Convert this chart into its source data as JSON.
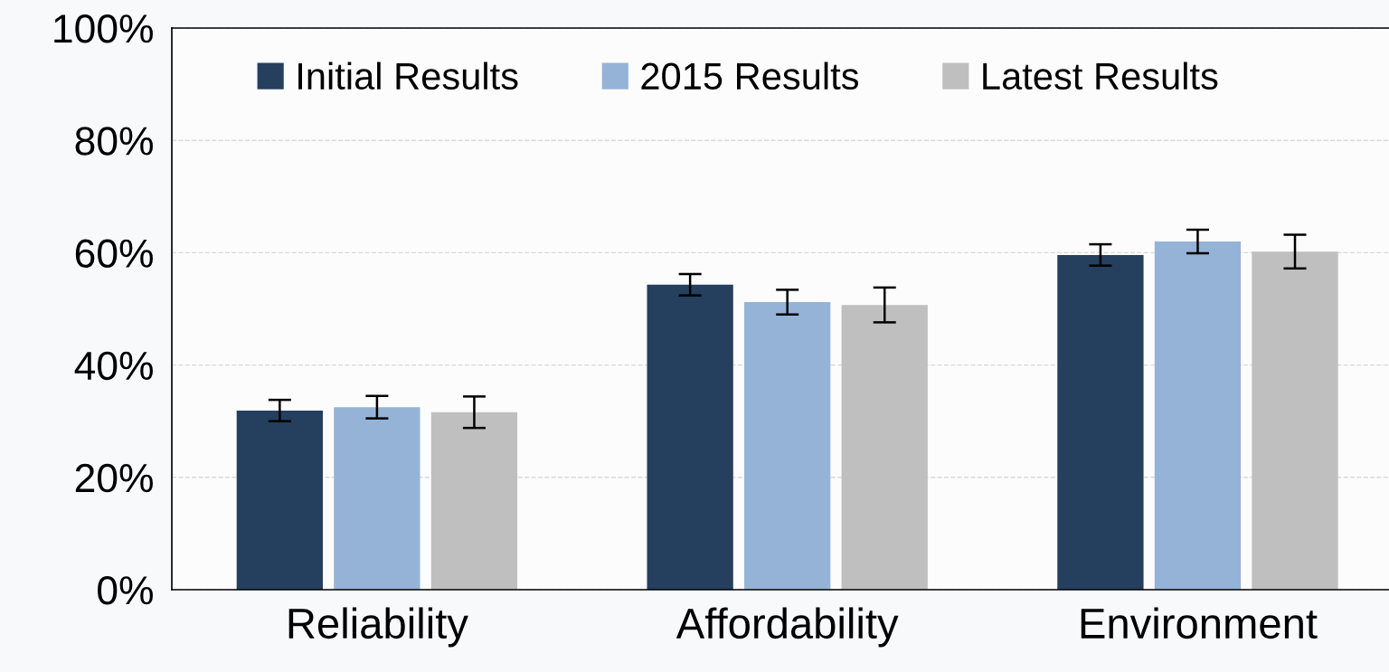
{
  "chart_data": {
    "type": "bar",
    "categories": [
      "Reliability",
      "Affordability",
      "Environment"
    ],
    "series": [
      {
        "name": "Initial Results",
        "color": "#253f5f",
        "values": [
          31.9,
          54.3,
          59.6
        ],
        "errors": [
          1.9,
          1.9,
          1.9
        ]
      },
      {
        "name": "2015 Results",
        "color": "#95b3d7",
        "values": [
          32.5,
          51.2,
          62.0
        ],
        "errors": [
          2.0,
          2.2,
          2.1
        ]
      },
      {
        "name": "Latest Results",
        "color": "#bfbfbf",
        "values": [
          31.6,
          50.7,
          60.2
        ],
        "errors": [
          2.8,
          3.1,
          3.0
        ]
      }
    ],
    "ylim": [
      0,
      100
    ],
    "yticks": [
      {
        "value": 0,
        "label": "0%"
      },
      {
        "value": 20,
        "label": "20%"
      },
      {
        "value": 40,
        "label": "40%"
      },
      {
        "value": 60,
        "label": "60%"
      },
      {
        "value": 80,
        "label": "80%"
      },
      {
        "value": 100,
        "label": "100%"
      }
    ],
    "grid": "y",
    "legend": "top"
  }
}
